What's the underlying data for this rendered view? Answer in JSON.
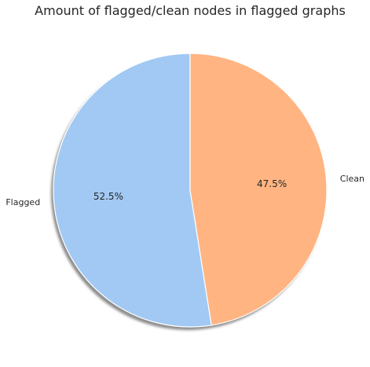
{
  "chart_data": {
    "type": "pie",
    "title": "Amount of flagged/clean nodes in flagged graphs",
    "slices": [
      {
        "label": "Flagged",
        "value": 52.5,
        "pct_label": "52.5%",
        "color": "#a1c9f4"
      },
      {
        "label": "Clean",
        "value": 47.5,
        "pct_label": "47.5%",
        "color": "#ffb482"
      }
    ],
    "start_angle_deg": 90,
    "direction": "counterclockwise",
    "shadow": true,
    "edge_color": "#ffffff"
  }
}
